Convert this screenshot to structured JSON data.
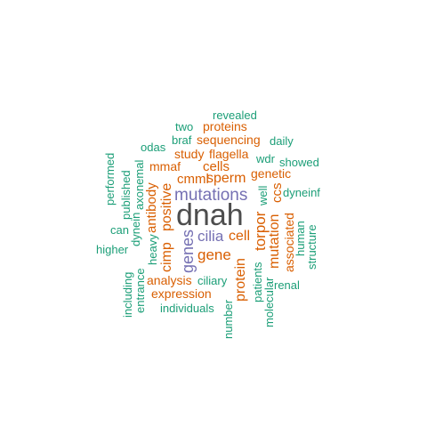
{
  "colors": {
    "dark": "#4d4d4d",
    "purple": "#7570b3",
    "orange": "#d95f02",
    "green": "#1b9e77"
  },
  "words": [
    {
      "text": "dnah",
      "color": "dark",
      "vertical": false
    },
    {
      "text": "mutations",
      "color": "purple",
      "vertical": false
    },
    {
      "text": "genes",
      "color": "purple",
      "vertical": true
    },
    {
      "text": "cilia",
      "color": "purple",
      "vertical": false
    },
    {
      "text": "gene",
      "color": "orange",
      "vertical": false
    },
    {
      "text": "cell",
      "color": "orange",
      "vertical": false
    },
    {
      "text": "torpor",
      "color": "orange",
      "vertical": true
    },
    {
      "text": "mutation",
      "color": "orange",
      "vertical": true
    },
    {
      "text": "sperm",
      "color": "orange",
      "vertical": false
    },
    {
      "text": "cmml",
      "color": "orange",
      "vertical": false
    },
    {
      "text": "positive",
      "color": "orange",
      "vertical": true
    },
    {
      "text": "cimp",
      "color": "orange",
      "vertical": true
    },
    {
      "text": "antibody",
      "color": "orange",
      "vertical": true
    },
    {
      "text": "cells",
      "color": "orange",
      "vertical": false
    },
    {
      "text": "mmaf",
      "color": "orange",
      "vertical": false
    },
    {
      "text": "flagella",
      "color": "orange",
      "vertical": false
    },
    {
      "text": "study",
      "color": "orange",
      "vertical": false
    },
    {
      "text": "sequencing",
      "color": "orange",
      "vertical": false
    },
    {
      "text": "proteins",
      "color": "orange",
      "vertical": false
    },
    {
      "text": "genetic",
      "color": "orange",
      "vertical": false
    },
    {
      "text": "ccs",
      "color": "orange",
      "vertical": true
    },
    {
      "text": "associated",
      "color": "orange",
      "vertical": true
    },
    {
      "text": "protein",
      "color": "orange",
      "vertical": true
    },
    {
      "text": "analysis",
      "color": "orange",
      "vertical": false
    },
    {
      "text": "expression",
      "color": "orange",
      "vertical": false
    },
    {
      "text": "revealed",
      "color": "green",
      "vertical": false
    },
    {
      "text": "two",
      "color": "green",
      "vertical": false
    },
    {
      "text": "braf",
      "color": "green",
      "vertical": false
    },
    {
      "text": "odas",
      "color": "green",
      "vertical": false
    },
    {
      "text": "daily",
      "color": "green",
      "vertical": false
    },
    {
      "text": "wdr",
      "color": "green",
      "vertical": false
    },
    {
      "text": "showed",
      "color": "green",
      "vertical": false
    },
    {
      "text": "well",
      "color": "green",
      "vertical": true
    },
    {
      "text": "dyneinf",
      "color": "green",
      "vertical": false
    },
    {
      "text": "human",
      "color": "green",
      "vertical": true
    },
    {
      "text": "structure",
      "color": "green",
      "vertical": true
    },
    {
      "text": "performed",
      "color": "green",
      "vertical": true
    },
    {
      "text": "published",
      "color": "green",
      "vertical": true
    },
    {
      "text": "axonemal",
      "color": "green",
      "vertical": true
    },
    {
      "text": "dynein",
      "color": "green",
      "vertical": true
    },
    {
      "text": "can",
      "color": "green",
      "vertical": false
    },
    {
      "text": "heavy",
      "color": "green",
      "vertical": true
    },
    {
      "text": "higher",
      "color": "green",
      "vertical": false
    },
    {
      "text": "including",
      "color": "green",
      "vertical": true
    },
    {
      "text": "entrance",
      "color": "green",
      "vertical": true
    },
    {
      "text": "ciliary",
      "color": "green",
      "vertical": false
    },
    {
      "text": "individuals",
      "color": "green",
      "vertical": false
    },
    {
      "text": "patients",
      "color": "green",
      "vertical": true
    },
    {
      "text": "molecular",
      "color": "green",
      "vertical": true
    },
    {
      "text": "renal",
      "color": "green",
      "vertical": false
    },
    {
      "text": "number",
      "color": "green",
      "vertical": true
    }
  ]
}
